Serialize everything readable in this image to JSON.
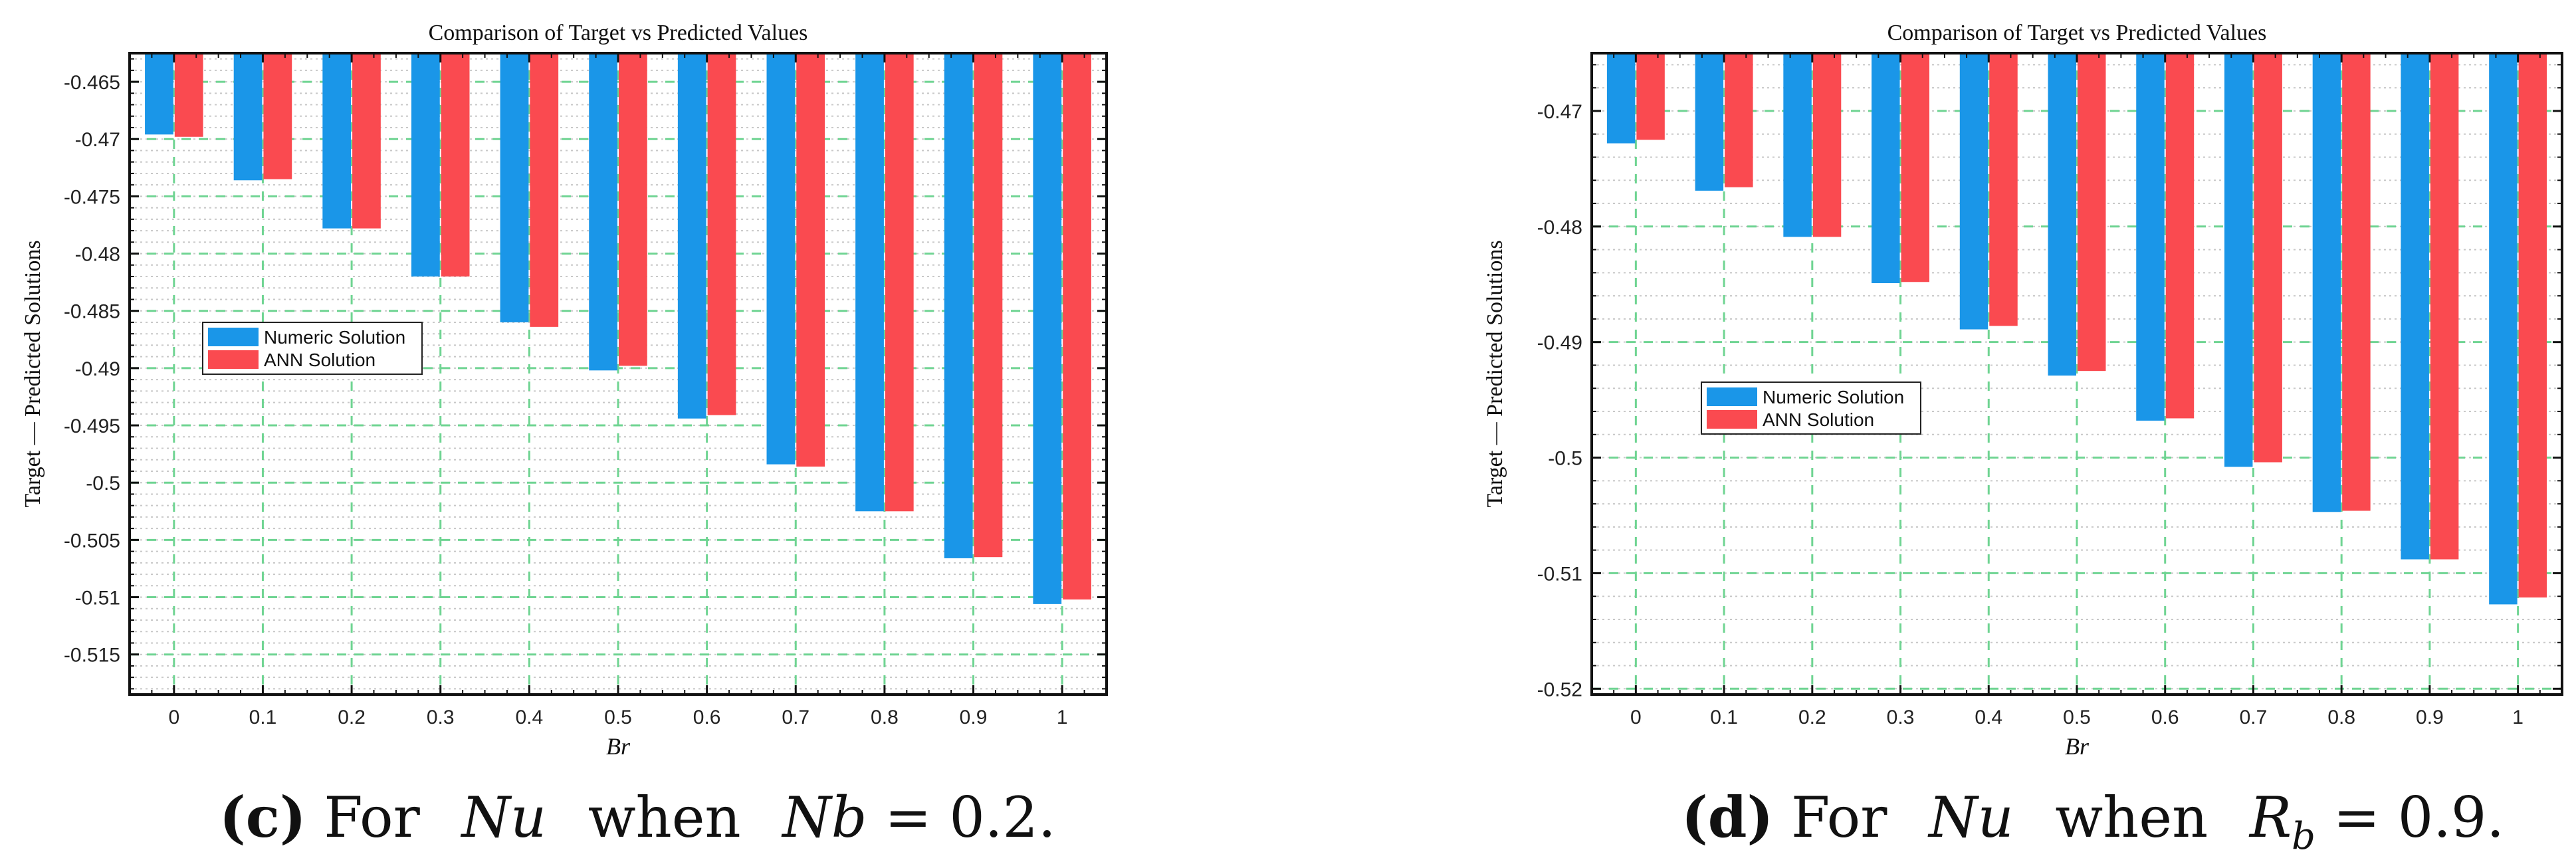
{
  "colors": {
    "numeric": "#1a96e8",
    "ann": "#fa4a50",
    "grid_major": "#6fd492",
    "grid_minor": "#c8c8c8",
    "axis": "#111111"
  },
  "chart_data": [
    {
      "type": "bar",
      "title": "Comparison of Target vs Predicted Values",
      "xlabel": "Br",
      "ylabel": "Target  —  Predicted Solutions",
      "categories": [
        "0",
        "0.1",
        "0.2",
        "0.3",
        "0.4",
        "0.5",
        "0.6",
        "0.7",
        "0.8",
        "0.9",
        "1"
      ],
      "ylim": [
        -0.5185,
        -0.4625
      ],
      "baseline": -0.4625,
      "yticks": [
        -0.465,
        -0.47,
        -0.475,
        -0.48,
        -0.485,
        -0.49,
        -0.495,
        -0.5,
        -0.505,
        -0.51,
        -0.515
      ],
      "ytick_labels": [
        "-0.465",
        "-0.47",
        "-0.475",
        "-0.48",
        "-0.485",
        "-0.49",
        "-0.495",
        "-0.5",
        "-0.505",
        "-0.51",
        "-0.515"
      ],
      "legend_position": "center-left",
      "series": [
        {
          "name": "Numeric Solution",
          "values": [
            -0.4696,
            -0.4736,
            -0.4778,
            -0.482,
            -0.486,
            -0.4902,
            -0.4944,
            -0.4984,
            -0.5025,
            -0.5066,
            -0.5106
          ]
        },
        {
          "name": "ANN Solution",
          "values": [
            -0.4698,
            -0.4735,
            -0.4778,
            -0.482,
            -0.4864,
            -0.4898,
            -0.4941,
            -0.4986,
            -0.5025,
            -0.5065,
            -0.5102
          ]
        }
      ]
    },
    {
      "type": "bar",
      "title": "Comparison of Target vs Predicted Values",
      "xlabel": "Br",
      "ylabel": "Target  —  Predicted Solutions",
      "categories": [
        "0",
        "0.1",
        "0.2",
        "0.3",
        "0.4",
        "0.5",
        "0.6",
        "0.7",
        "0.8",
        "0.9",
        "1"
      ],
      "ylim": [
        -0.5205,
        -0.465
      ],
      "baseline": -0.465,
      "yticks": [
        -0.47,
        -0.48,
        -0.49,
        -0.5,
        -0.51,
        -0.52
      ],
      "ytick_labels": [
        "-0.47",
        "-0.48",
        "-0.49",
        "-0.5",
        "-0.51",
        "-0.52"
      ],
      "legend_position": "center-left",
      "series": [
        {
          "name": "Numeric Solution",
          "values": [
            -0.4728,
            -0.4769,
            -0.4809,
            -0.4849,
            -0.4889,
            -0.4929,
            -0.4968,
            -0.5008,
            -0.5047,
            -0.5088,
            -0.5127
          ]
        },
        {
          "name": "ANN Solution",
          "values": [
            -0.4725,
            -0.4766,
            -0.4809,
            -0.4848,
            -0.4886,
            -0.4925,
            -0.4966,
            -0.5004,
            -0.5046,
            -0.5088,
            -0.5121
          ]
        }
      ]
    }
  ],
  "captions": [
    {
      "letter": "(c)",
      "pre": "For",
      "var": "Nu",
      "when": "when",
      "param": "Nb",
      "sub": "",
      "eq": "= 0.2",
      "end": "."
    },
    {
      "letter": "(d)",
      "pre": "For",
      "var": "Nu",
      "when": "when",
      "param": "R",
      "sub": "b",
      "eq": "= 0.9",
      "end": "."
    }
  ]
}
